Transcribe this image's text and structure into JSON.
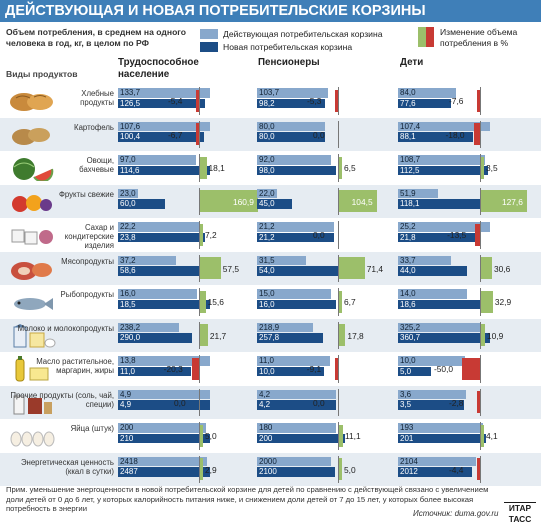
{
  "title": "ДЕЙСТВУЮЩАЯ И НОВАЯ ПОТРЕБИТЕЛЬСКИЕ КОРЗИНЫ",
  "note_top": "Объем потребления, в среднем на одного человека в год, кг, в целом по РФ",
  "legend": {
    "current": "Действующая потребительская корзина",
    "new": "Новая потребительская корзина",
    "change": "Изменение объема потребления в %"
  },
  "products_header": "Виды продуктов",
  "groups": [
    "Трудоспособное население",
    "Пенсионеры",
    "Дети"
  ],
  "colors": {
    "current": "#88a8cc",
    "new": "#1c4d86",
    "increase": "#9cbf6a",
    "decrease": "#c83a34",
    "title_bg": "#3f7fb8"
  },
  "chart_data": {
    "type": "bar",
    "categories": [
      "Хлебные продукты",
      "Картофель",
      "Овощи, бахчевые",
      "Фрукты свежие",
      "Сахар и кондитерские изделия",
      "Мясопродукты",
      "Рыбопродукты",
      "Молоко и молокопродукты",
      "Масло растительное, маргарин, жиры",
      "Прочие продукты (соль, чай, специи)",
      "Яйца (штук)",
      "Энергетическая ценность (ккал в сутки)"
    ],
    "groups": [
      {
        "name": "Трудоспособное население",
        "current": [
          "133,7",
          "107,6",
          "97,0",
          "23,0",
          "22,2",
          "37,2",
          "16,0",
          "238,2",
          "13,8",
          "4,9",
          "200",
          "2418"
        ],
        "new": [
          "126,5",
          "100,4",
          "114,6",
          "60,0",
          "23,8",
          "58,6",
          "18,5",
          "290,0",
          "11,0",
          "4,9",
          "210",
          "2487"
        ],
        "change": [
          "-5,4",
          "-6,7",
          "18,1",
          "160,9",
          "7,2",
          "57,5",
          "15,6",
          "21,7",
          "-20,3",
          "0,0",
          "5,0",
          "2,9"
        ]
      },
      {
        "name": "Пенсионеры",
        "current": [
          "103,7",
          "80,0",
          "92,0",
          "22,0",
          "21,2",
          "31,5",
          "15,0",
          "218,9",
          "11,0",
          "4,2",
          "180",
          "2000"
        ],
        "new": [
          "98,2",
          "80,0",
          "98,0",
          "45,0",
          "21,2",
          "54,0",
          "16,0",
          "257,8",
          "10,0",
          "4,2",
          "200",
          "2100"
        ],
        "change": [
          "-5,3",
          "0,0",
          "6,5",
          "104,5",
          "0,0",
          "71,4",
          "6,7",
          "17,8",
          "-9,1",
          "0,0",
          "11,1",
          "5,0"
        ]
      },
      {
        "name": "Дети",
        "current": [
          "84,0",
          "107,4",
          "108,7",
          "51,9",
          "25,2",
          "33,7",
          "14,0",
          "325,2",
          "10,0",
          "3,6",
          "193",
          "2104"
        ],
        "new": [
          "77,6",
          "88,1",
          "112,5",
          "118,1",
          "21,8",
          "44,0",
          "18,6",
          "360,7",
          "5,0",
          "3,5",
          "201",
          "2012"
        ],
        "change": [
          "-7,6",
          "-18,0",
          "3,5",
          "127,6",
          "-13,5",
          "30,6",
          "32,9",
          "10,9",
          "-50,0",
          "-2,8",
          "4,1",
          "-4,4"
        ]
      }
    ]
  },
  "icons": [
    "bread-icon",
    "potato-icon",
    "watermelon-icon",
    "fruit-icon",
    "sugar-icon",
    "meat-icon",
    "fish-icon",
    "milk-icon",
    "oil-icon",
    "salt-tea-icon",
    "eggs-icon",
    "energy-icon"
  ],
  "footnote": "Прим. уменьшение энергоценности в новой потребительской корзине для детей по сравнению с действующей связано с увеличением доли детей от 0 до 6 лет, у которых калорийность питания ниже, и снижением доли детей от 7 до 15 лет, у которых более высокая потребность в энергии",
  "source": "Источник: duma.gov.ru",
  "logo": [
    "ИТАР",
    "ТАСС"
  ]
}
